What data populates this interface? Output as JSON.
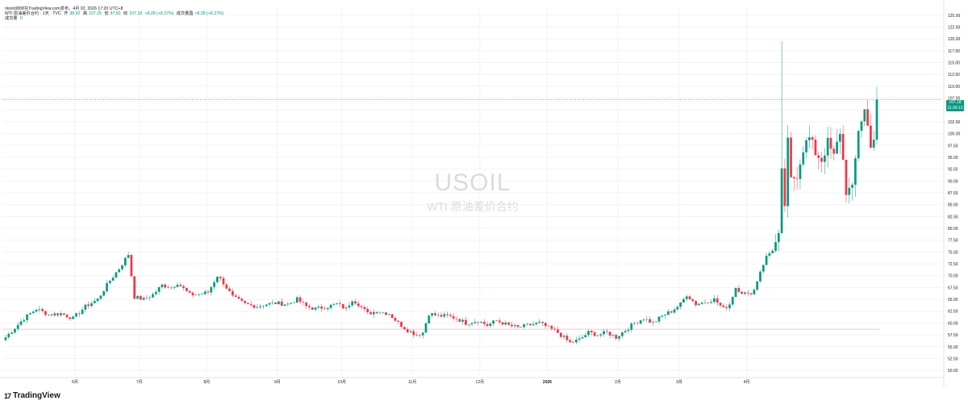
{
  "header": {
    "line1_prefix": "nlsnn0808在TradingView.com发布，4月 02, 2026 17:20 UTC+8",
    "symbol": "WTI 原油差价合约 · 1天 · TVC",
    "open_label": "开",
    "open_value": "98.92",
    "high_label": "高",
    "high_value": "107.25",
    "low_label": "低",
    "low_value": "97.50",
    "close_label": "收",
    "close_value": "107.18",
    "change": "+8.28 (+8.37%)",
    "pre_label": "成交量盈",
    "pre_change": "+8.28 (+8.37%)",
    "volume_label": "成交量",
    "volume_value": "0"
  },
  "watermark": {
    "symbol": "USOIL",
    "name": "WTI 原油差价合约"
  },
  "brand": {
    "logo": "17",
    "name": "TradingView"
  },
  "price_tag": {
    "price": "107.18",
    "countdown": "11:39:13"
  },
  "colors": {
    "up": "#089981",
    "down": "#f23645",
    "grid": "#f0f3fa",
    "reference_line": "#f7a1a8"
  },
  "chart_data": {
    "type": "candlestick",
    "y_axis_ticks": [
      "125.00",
      "122.50",
      "120.00",
      "117.50",
      "115.00",
      "112.50",
      "110.00",
      "107.50",
      "105.00",
      "102.50",
      "100.00",
      "97.50",
      "95.00",
      "92.50",
      "90.00",
      "87.50",
      "85.00",
      "82.50",
      "80.00",
      "77.50",
      "75.00",
      "72.50",
      "70.00",
      "67.50",
      "65.00",
      "62.50",
      "60.00",
      "57.50",
      "55.00",
      "52.50",
      "50.00"
    ],
    "ylim": [
      49.0,
      126.5
    ],
    "x_axis_labels": [
      "6月",
      "7月",
      "8月",
      "9月",
      "10月",
      "11月",
      "12月",
      "2026",
      "2月",
      "3月",
      "4月"
    ],
    "current_price": 107.18,
    "reference_price": 58.7,
    "anchors": [
      [
        0,
        57.0
      ],
      [
        6,
        61.0
      ],
      [
        10,
        63.0
      ],
      [
        14,
        61.8
      ],
      [
        18,
        62.0
      ],
      [
        22,
        61.0
      ],
      [
        26,
        63.5
      ],
      [
        30,
        65.0
      ],
      [
        34,
        69.0
      ],
      [
        37,
        71.5
      ],
      [
        40,
        74.5
      ],
      [
        42,
        65.5
      ],
      [
        45,
        65.0
      ],
      [
        48,
        66.0
      ],
      [
        51,
        68.0
      ],
      [
        54,
        67.5
      ],
      [
        56,
        68.5
      ],
      [
        60,
        66.0
      ],
      [
        63,
        66.0
      ],
      [
        66,
        66.5
      ],
      [
        69,
        70.0
      ],
      [
        71,
        68.5
      ],
      [
        74,
        65.5
      ],
      [
        78,
        64.0
      ],
      [
        82,
        63.5
      ],
      [
        85,
        64.0
      ],
      [
        88,
        64.2
      ],
      [
        92,
        64.0
      ],
      [
        95,
        65.0
      ],
      [
        98,
        63.5
      ],
      [
        101,
        63.0
      ],
      [
        105,
        63.5
      ],
      [
        108,
        64.0
      ],
      [
        111,
        63.0
      ],
      [
        113,
        65.0
      ],
      [
        115,
        64.0
      ],
      [
        118,
        62.0
      ],
      [
        121,
        62.5
      ],
      [
        125,
        62.0
      ],
      [
        128,
        60.0
      ],
      [
        131,
        58.5
      ],
      [
        134,
        57.5
      ],
      [
        136,
        58.0
      ],
      [
        138,
        62.0
      ],
      [
        141,
        61.5
      ],
      [
        144,
        61.5
      ],
      [
        147,
        61.0
      ],
      [
        150,
        60.0
      ],
      [
        154,
        60.5
      ],
      [
        157,
        59.5
      ],
      [
        160,
        60.5
      ],
      [
        164,
        59.5
      ],
      [
        167,
        59.0
      ],
      [
        170,
        59.5
      ],
      [
        174,
        60.0
      ],
      [
        177,
        59.0
      ],
      [
        180,
        58.0
      ],
      [
        184,
        55.8
      ],
      [
        187,
        56.5
      ],
      [
        190,
        58.0
      ],
      [
        193,
        57.5
      ],
      [
        196,
        58.0
      ],
      [
        199,
        57.0
      ],
      [
        202,
        58.5
      ],
      [
        205,
        60.0
      ],
      [
        208,
        61.0
      ],
      [
        211,
        60.0
      ],
      [
        214,
        61.5
      ],
      [
        217,
        62.5
      ],
      [
        220,
        64.0
      ],
      [
        222,
        66.0
      ],
      [
        225,
        64.0
      ],
      [
        228,
        64.5
      ],
      [
        231,
        65.0
      ],
      [
        234,
        63.0
      ],
      [
        236,
        64.0
      ],
      [
        238,
        67.5
      ],
      [
        240,
        66.5
      ],
      [
        242,
        66.0
      ],
      [
        244,
        67.0
      ],
      [
        246,
        71.0
      ],
      [
        248,
        74.0
      ],
      [
        250,
        75.5
      ],
      [
        252,
        78.0
      ],
      [
        253,
        91.5
      ],
      [
        254,
        85.0
      ],
      [
        255,
        98.0
      ],
      [
        256,
        90.0
      ],
      [
        258,
        91.5
      ],
      [
        260,
        97.0
      ],
      [
        262,
        99.0
      ],
      [
        264,
        96.0
      ],
      [
        266,
        94.5
      ],
      [
        268,
        98.0
      ],
      [
        270,
        95.0
      ],
      [
        272,
        100.5
      ],
      [
        274,
        88.0
      ],
      [
        276,
        88.0
      ],
      [
        278,
        101.0
      ],
      [
        280,
        105.0
      ],
      [
        282,
        98.0
      ],
      [
        283,
        99.0
      ],
      [
        284,
        107.18
      ]
    ],
    "spikes": [
      {
        "index": 253,
        "high": 119.5
      }
    ]
  }
}
